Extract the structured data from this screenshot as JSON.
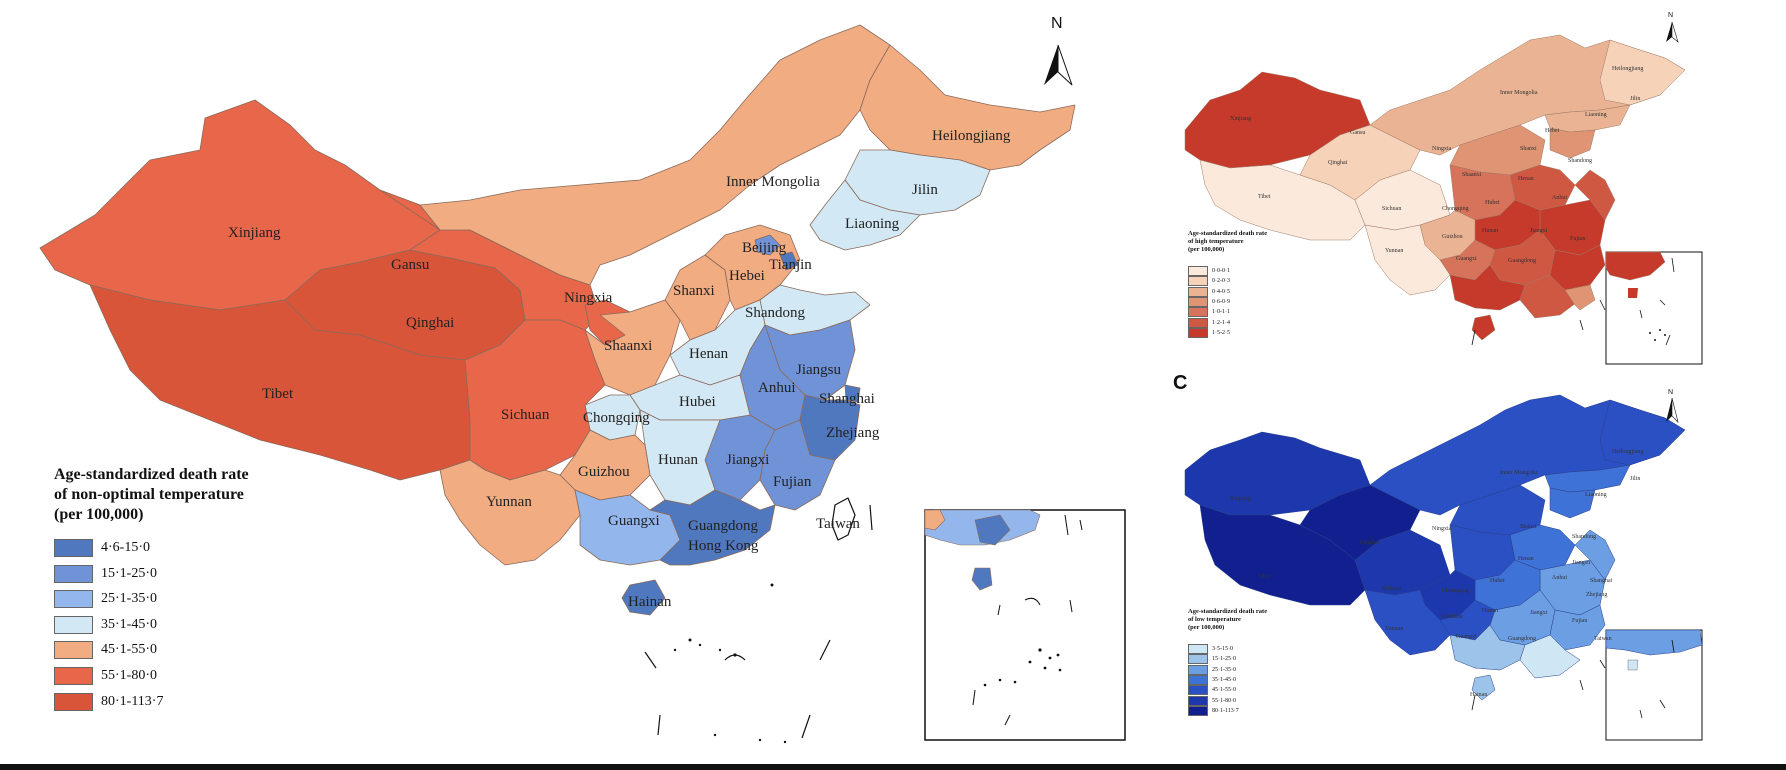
{
  "main_map": {
    "legend": {
      "title_lines": [
        "Age-standardized death rate",
        "of non-optimal temperature",
        "(per 100,000)"
      ],
      "items": [
        {
          "label": "4·6-15·0",
          "color": "#4f78bf"
        },
        {
          "label": "15·1-25·0",
          "color": "#6f93d6"
        },
        {
          "label": "25·1-35·0",
          "color": "#93b7ec"
        },
        {
          "label": "35·1-45·0",
          "color": "#d2e8f4"
        },
        {
          "label": "45·1-55·0",
          "color": "#f2ac82"
        },
        {
          "label": "55·1-80·0",
          "color": "#e8664a"
        },
        {
          "label": "80·1-113·7",
          "color": "#d8553a"
        }
      ]
    },
    "north": "N",
    "provinces": [
      {
        "name": "Heilongjiang"
      },
      {
        "name": "Inner Mongolia"
      },
      {
        "name": "Jilin"
      },
      {
        "name": "Xinjiang"
      },
      {
        "name": "Liaoning"
      },
      {
        "name": "Gansu"
      },
      {
        "name": "Beijing"
      },
      {
        "name": "Tianjin"
      },
      {
        "name": "Hebei"
      },
      {
        "name": "Ningxia"
      },
      {
        "name": "Shanxi"
      },
      {
        "name": "Qinghai"
      },
      {
        "name": "Shandong"
      },
      {
        "name": "Shaanxi"
      },
      {
        "name": "Henan"
      },
      {
        "name": "Jiangsu"
      },
      {
        "name": "Tibet"
      },
      {
        "name": "Anhui"
      },
      {
        "name": "Shanghai"
      },
      {
        "name": "Hubei"
      },
      {
        "name": "Sichuan"
      },
      {
        "name": "Chongqing"
      },
      {
        "name": "Zhejiang"
      },
      {
        "name": "Hunan"
      },
      {
        "name": "Jiangxi"
      },
      {
        "name": "Guizhou"
      },
      {
        "name": "Fujian"
      },
      {
        "name": "Yunnan"
      },
      {
        "name": "Taiwan"
      },
      {
        "name": "Guangxi"
      },
      {
        "name": "Guangdong"
      },
      {
        "name": "Hong Kong"
      },
      {
        "name": "Hainan"
      }
    ]
  },
  "high_temp_map": {
    "legend": {
      "title_lines": [
        "Age-standardized death rate",
        "of high temperature",
        "(per 100,000)"
      ],
      "items": [
        {
          "label": "0·0-0·1",
          "color": "#fbe9dc"
        },
        {
          "label": "0·2-0·3",
          "color": "#f5d2b8"
        },
        {
          "label": "0·4-0·5",
          "color": "#eab393"
        },
        {
          "label": "0·6-0·9",
          "color": "#df9474"
        },
        {
          "label": "1·0-1·1",
          "color": "#d6735a"
        },
        {
          "label": "1·2-1·4",
          "color": "#cf5843"
        },
        {
          "label": "1·5-2·5",
          "color": "#c53a2a"
        }
      ]
    },
    "north": "N",
    "labels": [
      "Heilongjiang",
      "Inner Mongolia",
      "Jilin",
      "Xinjiang",
      "Liaoning",
      "Gansu",
      "Qinghai",
      "Tibet",
      "Ningxia",
      "Shanxi",
      "Shaanxi",
      "Sichuan",
      "Henan",
      "Hubei",
      "Chongqing",
      "Anhui",
      "Guizhou",
      "Hunan",
      "Jiangxi",
      "Yunnan",
      "Guangxi",
      "Guangdong",
      "Fujian",
      "Hebei",
      "Shandong"
    ]
  },
  "low_temp_map": {
    "panel_letter": "C",
    "legend": {
      "title_lines": [
        "Age-standardized death rate",
        "of low temperature",
        "(per 100,000)"
      ],
      "items": [
        {
          "label": "3·5-15·0",
          "color": "#cfe7f4"
        },
        {
          "label": "15·1-25·0",
          "color": "#9cc4ea"
        },
        {
          "label": "25·1-35·0",
          "color": "#6b9ee2"
        },
        {
          "label": "35·1-45·0",
          "color": "#3f72d6"
        },
        {
          "label": "45·1-55·0",
          "color": "#2a50c4"
        },
        {
          "label": "55·1-80·0",
          "color": "#1d38ac"
        },
        {
          "label": "80·1-113·7",
          "color": "#12208f"
        }
      ]
    },
    "north": "N",
    "labels": [
      "Heilongjiang",
      "Inner Mongolia",
      "Jilin",
      "Liaoning",
      "Xinjiang",
      "Qinghai",
      "Tibet",
      "Ningxia",
      "Shanxi",
      "Shandong",
      "Henan",
      "Sichuan",
      "Hubei",
      "Jiangsu",
      "Anhui",
      "Chongqing",
      "Shanghai",
      "Zhejiang",
      "Hunan",
      "Jiangxi",
      "Fujian",
      "Yunnan",
      "Guizhou",
      "Guangxi",
      "Guangdong",
      "Hainan",
      "Taiwan"
    ]
  }
}
